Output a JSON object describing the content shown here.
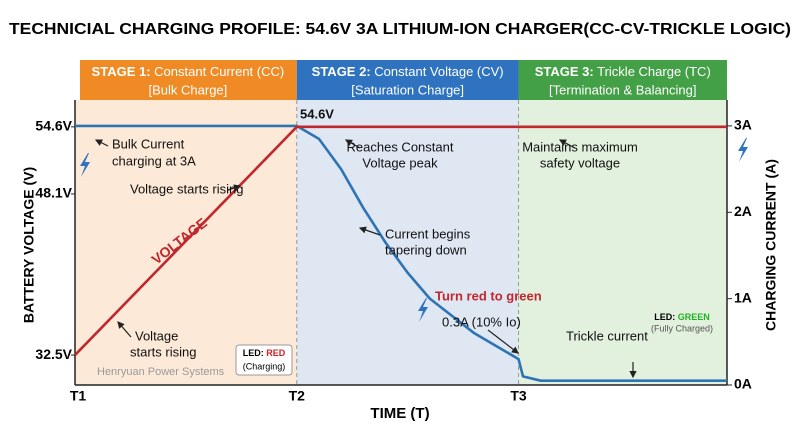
{
  "chart_data": {
    "type": "line",
    "title": "TECHNICIAL CHARGING PROFILE: 54.6V 3A LITHIUM-ION CHARGER(CC-CV-TRICKLE LOGIC)",
    "x_label": "TIME (T)",
    "y_label": "BATTERY VOLTAGE (V)",
    "y2_label": "CHARGING CURRENT (A)",
    "x": [
      0,
      0.5,
      1,
      1.1,
      1.2,
      1.3,
      1.4,
      1.5,
      1.6,
      1.7,
      1.8,
      1.9,
      2,
      2.02,
      2.1,
      2.5,
      2.94
    ],
    "xlim": [
      0,
      2.94
    ],
    "xticks": [
      {
        "value": 0,
        "label": "T1"
      },
      {
        "value": 1,
        "label": "T2"
      },
      {
        "value": 2,
        "label": "T3"
      }
    ],
    "ylim": [
      29.6,
      57.2
    ],
    "yticks": [
      {
        "value": 32.5,
        "label": "32.5V"
      },
      {
        "value": 48.1,
        "label": "48.1V"
      },
      {
        "value": 54.6,
        "label": "54.6V"
      }
    ],
    "y2lim": [
      0,
      3.3
    ],
    "y2ticks": [
      {
        "value": 0,
        "label": "0A"
      },
      {
        "value": 1,
        "label": "1A"
      },
      {
        "value": 2,
        "label": "2A"
      },
      {
        "value": 3,
        "label": "3A"
      }
    ],
    "series": [
      {
        "name": "VOLTAGE",
        "color": "#c0282d",
        "values": [
          32.5,
          43.55,
          54.6,
          54.6,
          54.6,
          54.6,
          54.6,
          54.6,
          54.6,
          54.6,
          54.6,
          54.6,
          54.6,
          54.6,
          54.6,
          54.6,
          54.6
        ]
      },
      {
        "name": "Current",
        "color": "#2e74b5",
        "axis": "y2",
        "values": [
          3,
          3,
          3,
          2.85,
          2.5,
          2.05,
          1.65,
          1.3,
          1.0,
          0.8,
          0.6,
          0.45,
          0.3,
          0.1,
          0.05,
          0.05,
          0.05
        ]
      }
    ],
    "stages": [
      {
        "label": "STAGE 1:",
        "name": "Constant Current (CC)",
        "detail": "[Bulk Charge]",
        "color": "#f08a24",
        "bg": "#fde9d8"
      },
      {
        "label": "STAGE 2:",
        "name": "Constant Voltage (CV)",
        "detail": "[Saturation Charge]",
        "color": "#2f73c0",
        "bg": "#dfe7f3"
      },
      {
        "label": "STAGE 3:",
        "name": "Trickle Charge (TC)",
        "detail": "[Termination & Balancing]",
        "color": "#44a047",
        "bg": "#e2f0de"
      }
    ],
    "annotations": [
      "Bulk Current",
      "charging at 3A",
      "Voltage starts rising",
      "Voltage",
      "starts rising",
      "54.6V",
      "Reaches Constant",
      "Voltage peak",
      "Current begins",
      "tapering down",
      "Turn red to green",
      "0.3A (10% Io)",
      "Maintains maximum",
      "safety voltage",
      "Trickle current",
      "Henryuan Power Systems"
    ],
    "led_red": {
      "label": "LED:",
      "state": "RED",
      "note": "(Charging)"
    },
    "led_green": {
      "label": "LED:",
      "state": "GREEN",
      "note": "(Fully Charged)"
    }
  }
}
